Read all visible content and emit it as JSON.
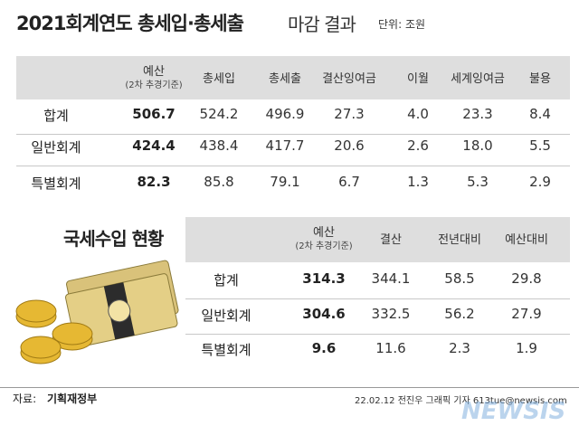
{
  "header": {
    "title": "2021회계연도 총세입·총세출",
    "title_light": "마감 결과",
    "unit": "단위: 조원"
  },
  "table1": {
    "columns": [
      {
        "label": "예산",
        "sub": "(2차 추경기준)"
      },
      {
        "label": "총세입"
      },
      {
        "label": "총세출"
      },
      {
        "label": "결산잉여금"
      },
      {
        "label": "이월"
      },
      {
        "label": "세계잉여금"
      },
      {
        "label": "불용"
      }
    ],
    "rows": [
      {
        "label": "합계",
        "cells": [
          "506.7",
          "524.2",
          "496.9",
          "27.3",
          "4.0",
          "23.3",
          "8.4"
        ]
      },
      {
        "label": "일반회계",
        "cells": [
          "424.4",
          "438.4",
          "417.7",
          "20.6",
          "2.6",
          "18.0",
          "5.5"
        ]
      },
      {
        "label": "특별회계",
        "cells": [
          "82.3",
          "85.8",
          "79.1",
          "6.7",
          "1.3",
          "5.3",
          "2.9"
        ]
      }
    ]
  },
  "table2": {
    "title": "국세수입 현황",
    "columns": [
      {
        "label": "예산",
        "sub": "(2차 추경기준)"
      },
      {
        "label": "결산"
      },
      {
        "label": "전년대비"
      },
      {
        "label": "예산대비"
      }
    ],
    "rows": [
      {
        "label": "합계",
        "cells": [
          "314.3",
          "344.1",
          "58.5",
          "29.8"
        ]
      },
      {
        "label": "일반회계",
        "cells": [
          "304.6",
          "332.5",
          "56.2",
          "27.9"
        ]
      },
      {
        "label": "특별회계",
        "cells": [
          "9.6",
          "11.6",
          "2.3",
          "1.9"
        ]
      }
    ]
  },
  "footer": {
    "source_label": "자료:",
    "source": "기획재정부",
    "credit": "22.02.12 전진우 그래픽 기자 613tue@newsis.com",
    "watermark": "NEWSIS"
  }
}
